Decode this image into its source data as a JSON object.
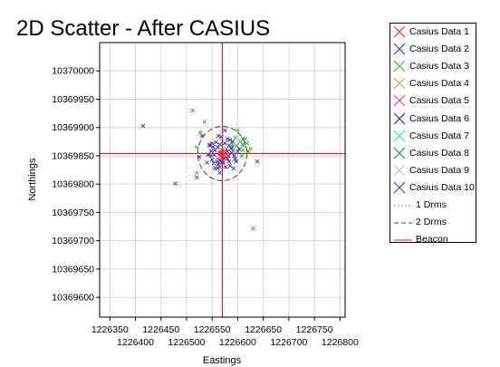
{
  "chart_data": {
    "type": "scatter",
    "title": "2D Scatter - After CASIUS",
    "xlabel": "Eastings",
    "ylabel": "Northings",
    "xlim": [
      1226330,
      1226810
    ],
    "ylim": [
      10369565,
      10370050
    ],
    "xticks": [
      1226350,
      1226400,
      1226450,
      1226500,
      1226550,
      1226600,
      1226650,
      1226700,
      1226750,
      1226800
    ],
    "yticks": [
      10369600,
      10369650,
      10369700,
      10369750,
      10369800,
      10369850,
      10369900,
      10369950,
      10370000
    ],
    "grid": true,
    "legend_position": "right",
    "beacon": {
      "x": 1226570,
      "y": 10369854
    },
    "drms_1": 24,
    "drms_2": 48,
    "series": [
      {
        "name": "Casius Data 1",
        "color": "#ff3030",
        "points": [
          [
            1226568,
            10369856
          ],
          [
            1226572,
            10369852
          ],
          [
            1226566,
            10369850
          ],
          [
            1226574,
            10369858
          ],
          [
            1226570,
            10369860
          ],
          [
            1226569,
            10369848
          ],
          [
            1226575,
            10369851
          ],
          [
            1226565,
            10369857
          ],
          [
            1226571,
            10369855
          ],
          [
            1226567,
            10369853
          ],
          [
            1226573,
            10369849
          ],
          [
            1226570,
            10369851
          ],
          [
            1226564,
            10369854
          ],
          [
            1226576,
            10369856
          ],
          [
            1226568,
            10369847
          ]
        ]
      },
      {
        "name": "Casius Data 2",
        "color": "#3a3ad6",
        "points": [
          [
            1226415,
            10369903
          ],
          [
            1226478,
            10369801
          ],
          [
            1226550,
            10369872
          ],
          [
            1226585,
            10369832
          ],
          [
            1226560,
            10369840
          ],
          [
            1226590,
            10369865
          ],
          [
            1226547,
            10369850
          ],
          [
            1226580,
            10369880
          ],
          [
            1226555,
            10369828
          ],
          [
            1226595,
            10369845
          ],
          [
            1226530,
            10369885
          ],
          [
            1226575,
            10369895
          ],
          [
            1226565,
            10369820
          ],
          [
            1226600,
            10369858
          ],
          [
            1226540,
            10369838
          ],
          [
            1226610,
            10369870
          ],
          [
            1226585,
            10369878
          ],
          [
            1226552,
            10369866
          ],
          [
            1226592,
            10369828
          ],
          [
            1226562,
            10369885
          ],
          [
            1226638,
            10369840
          ],
          [
            1226520,
            10369812
          ],
          [
            1226525,
            10369848
          ]
        ]
      },
      {
        "name": "Casius Data 3",
        "color": "#22cc22",
        "points": [
          [
            1226512,
            10369930
          ],
          [
            1226520,
            10369820
          ],
          [
            1226630,
            10369722
          ],
          [
            1226535,
            10369910
          ],
          [
            1226600,
            10369895
          ],
          [
            1226610,
            10369860
          ],
          [
            1226615,
            10369880
          ],
          [
            1226590,
            10369870
          ],
          [
            1226605,
            10369875
          ],
          [
            1226625,
            10369862
          ],
          [
            1226595,
            10369882
          ],
          [
            1226612,
            10369868
          ],
          [
            1226520,
            10369865
          ],
          [
            1226527,
            10369891
          ],
          [
            1226608,
            10369850
          ],
          [
            1226590,
            10369860
          ],
          [
            1226618,
            10369872
          ]
        ]
      },
      {
        "name": "Casius Data 4",
        "color": "#e0a020",
        "points": []
      },
      {
        "name": "Casius Data 5",
        "color": "#cc40cc",
        "points": [
          [
            1226560,
            10369845
          ],
          [
            1226578,
            10369862
          ]
        ]
      },
      {
        "name": "Casius Data 6",
        "color": "#2a2aaa",
        "points": [
          [
            1226555,
            10369860
          ],
          [
            1226562,
            10369835
          ],
          [
            1226580,
            10369845
          ],
          [
            1226588,
            10369855
          ],
          [
            1226548,
            10369858
          ],
          [
            1226572,
            10369838
          ],
          [
            1226583,
            10369868
          ],
          [
            1226558,
            10369874
          ],
          [
            1226542,
            10369852
          ],
          [
            1226597,
            10369840
          ],
          [
            1226565,
            10369870
          ],
          [
            1226577,
            10369830
          ],
          [
            1226590,
            10369875
          ],
          [
            1226550,
            10369843
          ],
          [
            1226603,
            10369862
          ],
          [
            1226568,
            10369883
          ],
          [
            1226583,
            10369840
          ],
          [
            1226545,
            10369868
          ],
          [
            1226575,
            10369872
          ],
          [
            1226560,
            10369828
          ],
          [
            1226593,
            10369850
          ],
          [
            1226553,
            10369837
          ],
          [
            1226580,
            10369858
          ],
          [
            1226566,
            10369842
          ],
          [
            1226587,
            10369863
          ],
          [
            1226561,
            10369865
          ],
          [
            1226574,
            10369845
          ],
          [
            1226554,
            10369852
          ],
          [
            1226582,
            10369850
          ],
          [
            1226569,
            10369838
          ]
        ]
      },
      {
        "name": "Casius Data 7",
        "color": "#30d8e0",
        "points": []
      },
      {
        "name": "Casius Data 8",
        "color": "#1a9a3a",
        "points": [
          [
            1226598,
            10369868
          ],
          [
            1226610,
            10369880
          ],
          [
            1226620,
            10369858
          ]
        ]
      },
      {
        "name": "Casius Data 9",
        "color": "#c0c0c0",
        "points": []
      },
      {
        "name": "Casius Data 10",
        "color": "#7a2aa0",
        "points": [
          [
            1226545,
            10369870
          ],
          [
            1226565,
            10369830
          ]
        ]
      }
    ],
    "legend_lines": [
      {
        "label": "1 Drms",
        "style": "dashed",
        "color": "#8a8a8a"
      },
      {
        "label": "2 Drms",
        "style": "longdash",
        "color": "#444444"
      },
      {
        "label": "Beacon",
        "style": "solid",
        "color": "#e02020"
      }
    ]
  }
}
